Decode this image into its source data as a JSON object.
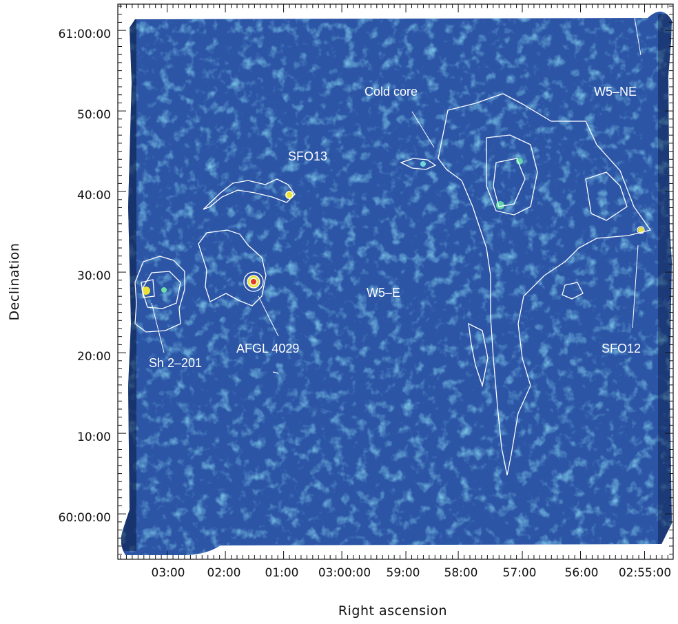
{
  "chart_data": {
    "type": "heatmap",
    "xlabel": "Right ascension",
    "ylabel": "Declination",
    "x_ticks": [
      "03:00",
      "02:00",
      "01:00",
      "03:00:00",
      "59:00",
      "58:00",
      "57:00",
      "56:00",
      "02:55:00"
    ],
    "y_ticks": [
      "61:00:00",
      "50:00",
      "40:00",
      "30:00",
      "20:00",
      "10:00",
      "60:00:00"
    ],
    "annotations": [
      {
        "text": "Cold core"
      },
      {
        "text": "W5–NE"
      },
      {
        "text": "SFO13"
      },
      {
        "text": "W5–E"
      },
      {
        "text": "AFGL 4029"
      },
      {
        "text": "Sh 2–201"
      },
      {
        "text": "SFO12"
      }
    ],
    "colormap": {
      "background": "#2c55a6",
      "low": "#0a1a40",
      "mid": "#3aa6d6",
      "high": "#e8e23a",
      "peak": "#e23a2a"
    },
    "contour_color": "#ffffff",
    "grid": false
  }
}
